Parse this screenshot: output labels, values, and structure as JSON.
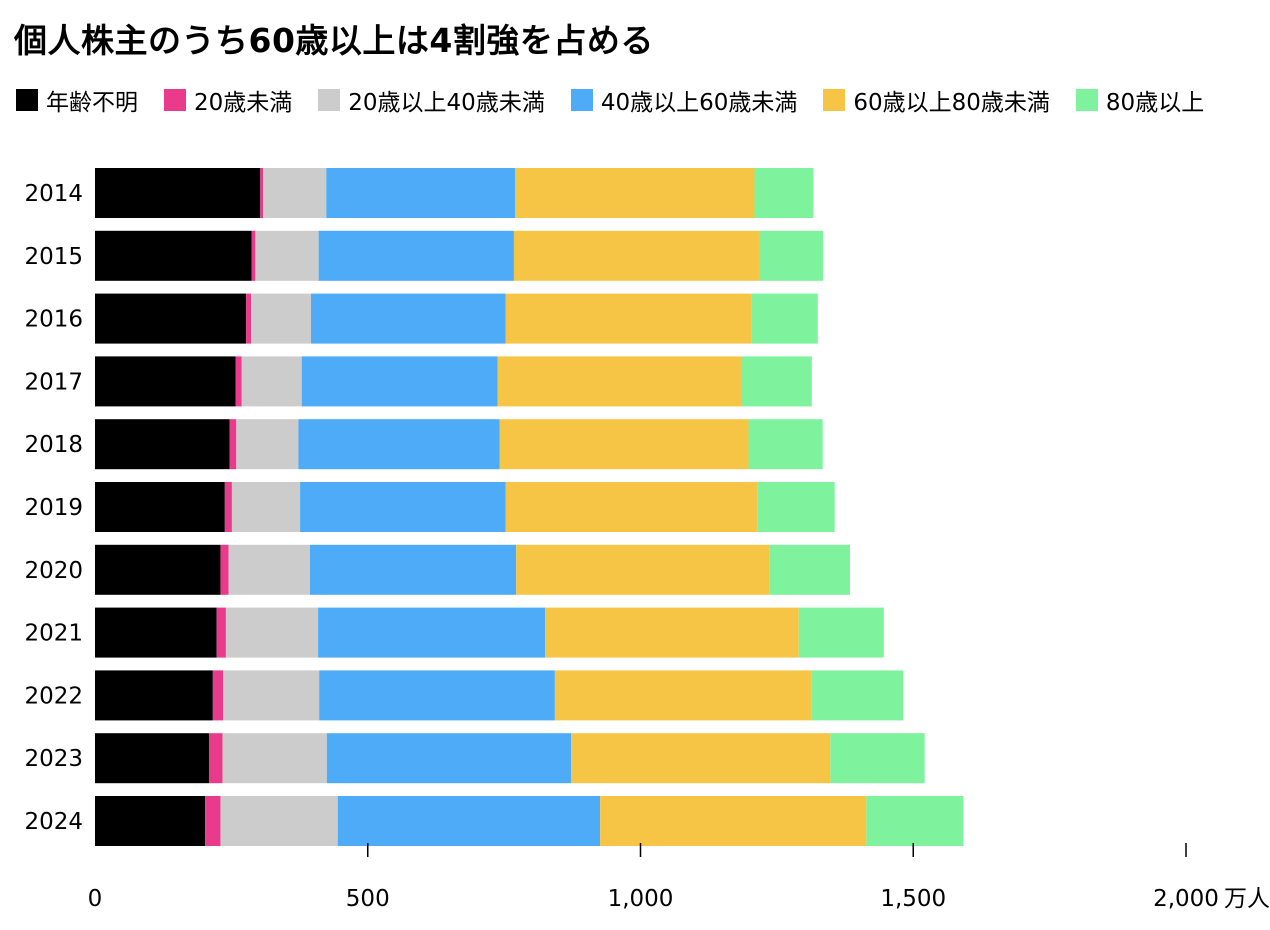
{
  "chart_data": {
    "type": "bar",
    "orientation": "horizontal",
    "stacked": true,
    "title": "個人株主のうち60歳以上は4割強を占める",
    "unit_label": "万人",
    "categories": [
      "2014",
      "2015",
      "2016",
      "2017",
      "2018",
      "2019",
      "2020",
      "2021",
      "2022",
      "2023",
      "2024"
    ],
    "series": [
      {
        "name": "年齢不明",
        "color": "#000000",
        "values": [
          303,
          287,
          277,
          258,
          247,
          238,
          230,
          223,
          216,
          209,
          202
        ]
      },
      {
        "name": "20歳未満",
        "color": "#ea3a8c",
        "values": [
          5,
          7,
          9,
          11,
          12,
          13,
          15,
          17,
          19,
          25,
          28
        ]
      },
      {
        "name": "20歳以上40歳未満",
        "color": "#cccccc",
        "values": [
          116,
          116,
          110,
          110,
          114,
          125,
          149,
          169,
          176,
          191,
          215
        ]
      },
      {
        "name": "40歳以上60歳未満",
        "color": "#4dabf7",
        "values": [
          346,
          358,
          357,
          359,
          369,
          377,
          378,
          416,
          432,
          448,
          481
        ]
      },
      {
        "name": "60歳以上80歳未満",
        "color": "#f6c546",
        "values": [
          439,
          451,
          450,
          448,
          456,
          461,
          464,
          465,
          471,
          475,
          488
        ]
      },
      {
        "name": "80歳以上",
        "color": "#7ef29d",
        "values": [
          108,
          116,
          122,
          128,
          136,
          142,
          148,
          156,
          168,
          173,
          178
        ]
      }
    ],
    "xlim": [
      0,
      2000
    ],
    "xticks": [
      0,
      500,
      1000,
      1500,
      2000
    ],
    "xtick_labels": [
      "0",
      "500",
      "1,000",
      "1,500",
      "2,000"
    ],
    "grid": false,
    "legend_position": "top-left"
  }
}
